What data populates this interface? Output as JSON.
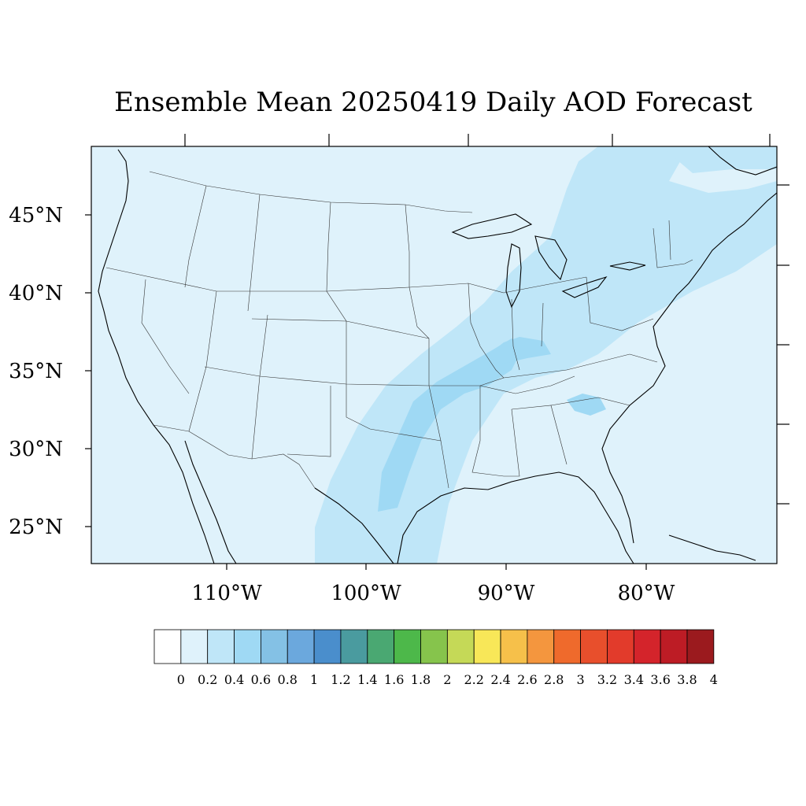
{
  "title": "Ensemble Mean 20250419 Daily AOD Forecast",
  "map": {
    "projection": "Lambert conformal (CONUS)",
    "ocean_color": "#dff2fb",
    "land_color": "#dff2fb",
    "plume_colors": {
      "0.2-0.4": "#bfe6f8",
      "0.4-0.6": "#9fd9f4"
    }
  },
  "lat_labels": [
    "45°N",
    "40°N",
    "35°N",
    "30°N",
    "25°N"
  ],
  "lon_labels": [
    "110°W",
    "100°W",
    "90°W",
    "80°W"
  ],
  "colorbar": {
    "levels": [
      "0",
      "0.2",
      "0.4",
      "0.6",
      "0.8",
      "1",
      "1.2",
      "1.4",
      "1.6",
      "1.8",
      "2",
      "2.2",
      "2.4",
      "2.6",
      "2.8",
      "3",
      "3.2",
      "3.4",
      "3.6",
      "3.8",
      "4"
    ],
    "colors": [
      "#ffffff",
      "#dff2fb",
      "#bfe6f8",
      "#9fd9f4",
      "#84c1e5",
      "#6ba8dd",
      "#4a8ecc",
      "#4a9b9f",
      "#4aa872",
      "#4db84a",
      "#86c44c",
      "#c5d957",
      "#f8e758",
      "#f6c04a",
      "#f4963e",
      "#ef6a2c",
      "#e84f2c",
      "#e23b2b",
      "#d4242b",
      "#bd1c25",
      "#9b1a1e"
    ]
  }
}
